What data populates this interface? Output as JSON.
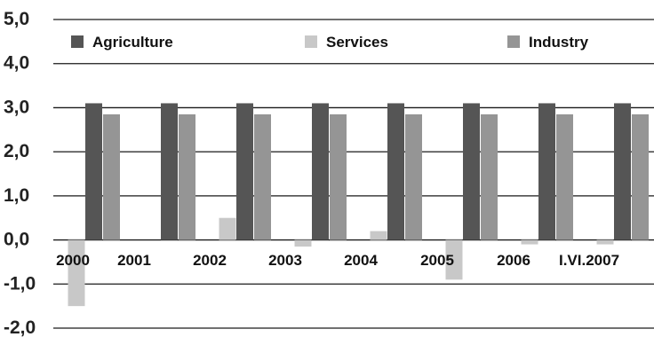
{
  "chart_data": {
    "type": "bar",
    "categories": [
      "2000",
      "2001",
      "2002",
      "2003",
      "2004",
      "2005",
      "2006",
      "I.VI.2007"
    ],
    "series": [
      {
        "name": "Agriculture",
        "color": "#555555",
        "values": [
          3.1,
          3.1,
          3.1,
          3.1,
          3.1,
          3.1,
          3.1,
          3.1
        ]
      },
      {
        "name": "Services",
        "color": "#c8c8c8",
        "values": [
          -1.5,
          0.0,
          0.5,
          -0.15,
          0.2,
          -0.9,
          -0.1,
          -0.1
        ]
      },
      {
        "name": "Industry",
        "color": "#959595",
        "values": [
          2.85,
          2.85,
          2.85,
          2.85,
          2.85,
          2.85,
          2.85,
          2.85
        ]
      }
    ],
    "bar_order": [
      "Services",
      "Agriculture",
      "Industry"
    ],
    "yticks": [
      "5,0",
      "4,0",
      "3,0",
      "2,0",
      "1,0",
      "0,0",
      "-1,0",
      "-2,0"
    ],
    "ylim": [
      -2,
      5
    ],
    "grid": true,
    "legend_position": "top"
  }
}
